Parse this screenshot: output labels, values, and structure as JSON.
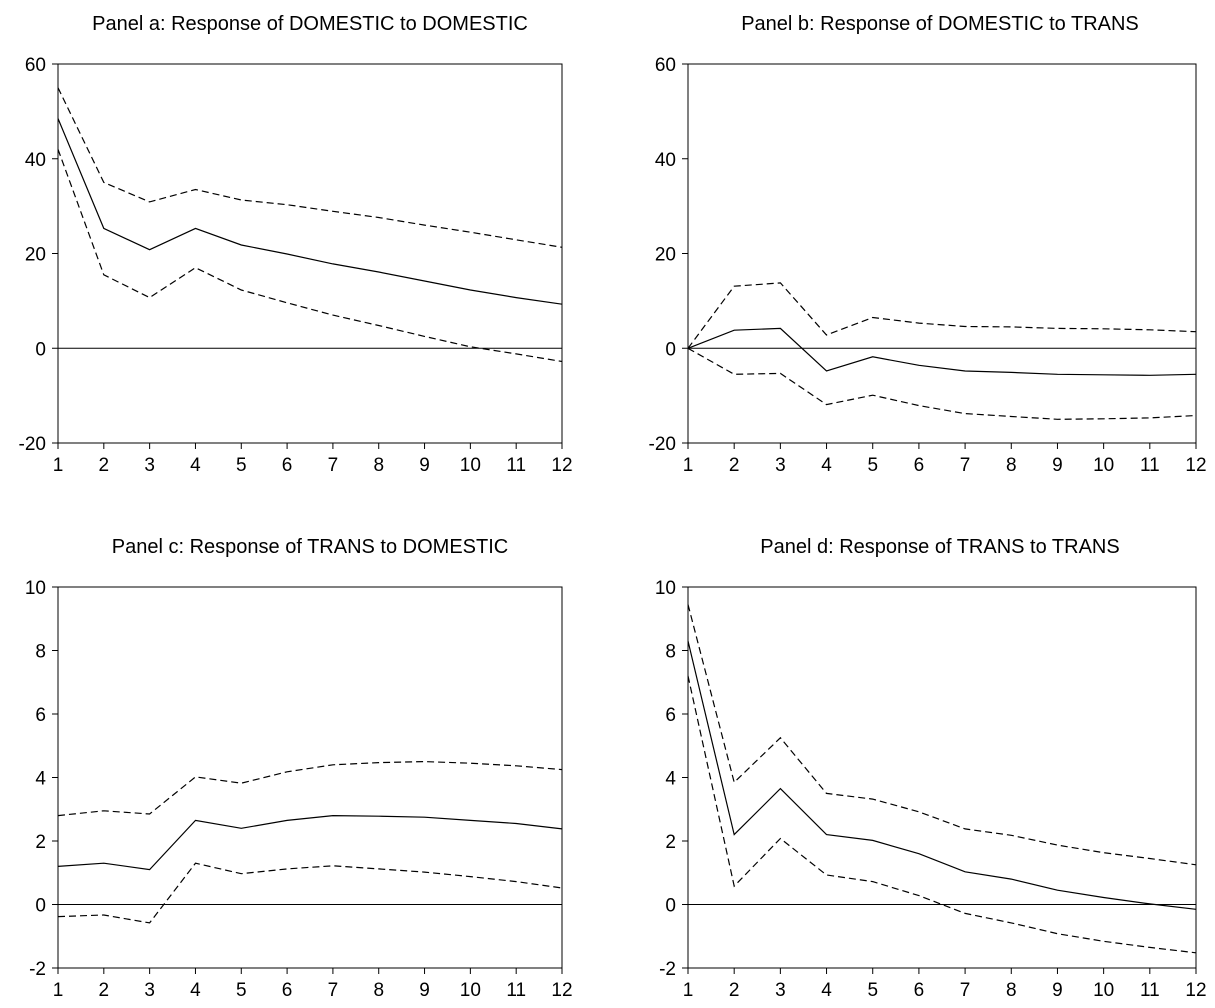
{
  "chart_data": [
    {
      "type": "line",
      "title": "Panel a: Response of DOMESTIC to DOMESTIC",
      "x": [
        1,
        2,
        3,
        4,
        5,
        6,
        7,
        8,
        9,
        10,
        11,
        12
      ],
      "yticks": [
        -20,
        0,
        20,
        40,
        60
      ],
      "ylim": [
        -20,
        60
      ],
      "xlim": [
        1,
        12
      ],
      "zero_line": true,
      "grid": false,
      "series": [
        {
          "style": "solid",
          "values": [
            48.5,
            25.3,
            20.8,
            25.3,
            21.8,
            19.9,
            17.8,
            16.1,
            14.2,
            12.3,
            10.7,
            9.3
          ]
        },
        {
          "style": "dashed",
          "values": [
            55.0,
            35.0,
            30.9,
            33.5,
            31.3,
            30.3,
            28.9,
            27.6,
            26.0,
            24.5,
            22.9,
            21.3
          ]
        },
        {
          "style": "dashed",
          "values": [
            42.0,
            15.5,
            10.7,
            17.0,
            12.3,
            9.6,
            7.0,
            4.8,
            2.5,
            0.3,
            -1.2,
            -2.8
          ]
        }
      ]
    },
    {
      "type": "line",
      "title": "Panel b: Response of DOMESTIC to TRANS",
      "x": [
        1,
        2,
        3,
        4,
        5,
        6,
        7,
        8,
        9,
        10,
        11,
        12
      ],
      "yticks": [
        -20,
        0,
        20,
        40,
        60
      ],
      "ylim": [
        -20,
        60
      ],
      "xlim": [
        1,
        12
      ],
      "zero_line": true,
      "grid": false,
      "series": [
        {
          "style": "solid",
          "values": [
            0,
            3.8,
            4.2,
            -4.8,
            -1.8,
            -3.6,
            -4.8,
            -5.1,
            -5.5,
            -5.6,
            -5.7,
            -5.5
          ]
        },
        {
          "style": "dashed",
          "values": [
            0,
            13.1,
            13.8,
            2.8,
            6.5,
            5.3,
            4.6,
            4.5,
            4.2,
            4.1,
            3.9,
            3.5
          ]
        },
        {
          "style": "dashed",
          "values": [
            0,
            -5.5,
            -5.3,
            -11.9,
            -9.9,
            -12.1,
            -13.8,
            -14.4,
            -15.0,
            -14.9,
            -14.7,
            -14.2
          ]
        }
      ]
    },
    {
      "type": "line",
      "title": "Panel c: Response of TRANS to DOMESTIC",
      "x": [
        1,
        2,
        3,
        4,
        5,
        6,
        7,
        8,
        9,
        10,
        11,
        12
      ],
      "yticks": [
        -2,
        0,
        2,
        4,
        6,
        8,
        10
      ],
      "ylim": [
        -2,
        10
      ],
      "xlim": [
        1,
        12
      ],
      "zero_line": true,
      "grid": false,
      "series": [
        {
          "style": "solid",
          "values": [
            1.2,
            1.3,
            1.1,
            2.65,
            2.4,
            2.65,
            2.8,
            2.78,
            2.75,
            2.65,
            2.55,
            2.38
          ]
        },
        {
          "style": "dashed",
          "values": [
            2.8,
            2.95,
            2.85,
            4.02,
            3.82,
            4.18,
            4.4,
            4.47,
            4.5,
            4.45,
            4.37,
            4.25
          ]
        },
        {
          "style": "dashed",
          "values": [
            -0.38,
            -0.33,
            -0.58,
            1.3,
            0.97,
            1.12,
            1.22,
            1.12,
            1.02,
            0.88,
            0.72,
            0.52
          ]
        }
      ]
    },
    {
      "type": "line",
      "title": "Panel d: Response of TRANS to TRANS",
      "x": [
        1,
        2,
        3,
        4,
        5,
        6,
        7,
        8,
        9,
        10,
        11,
        12
      ],
      "yticks": [
        -2,
        0,
        2,
        4,
        6,
        8,
        10
      ],
      "ylim": [
        -2,
        10
      ],
      "xlim": [
        1,
        12
      ],
      "zero_line": true,
      "grid": false,
      "series": [
        {
          "style": "solid",
          "values": [
            8.3,
            2.2,
            3.65,
            2.2,
            2.02,
            1.6,
            1.03,
            0.8,
            0.45,
            0.22,
            0.02,
            -0.15
          ]
        },
        {
          "style": "dashed",
          "values": [
            9.45,
            3.85,
            5.25,
            3.5,
            3.32,
            2.92,
            2.38,
            2.18,
            1.87,
            1.63,
            1.45,
            1.25
          ]
        },
        {
          "style": "dashed",
          "values": [
            7.2,
            0.58,
            2.08,
            0.93,
            0.72,
            0.28,
            -0.28,
            -0.58,
            -0.92,
            -1.16,
            -1.35,
            -1.52
          ]
        }
      ]
    }
  ]
}
